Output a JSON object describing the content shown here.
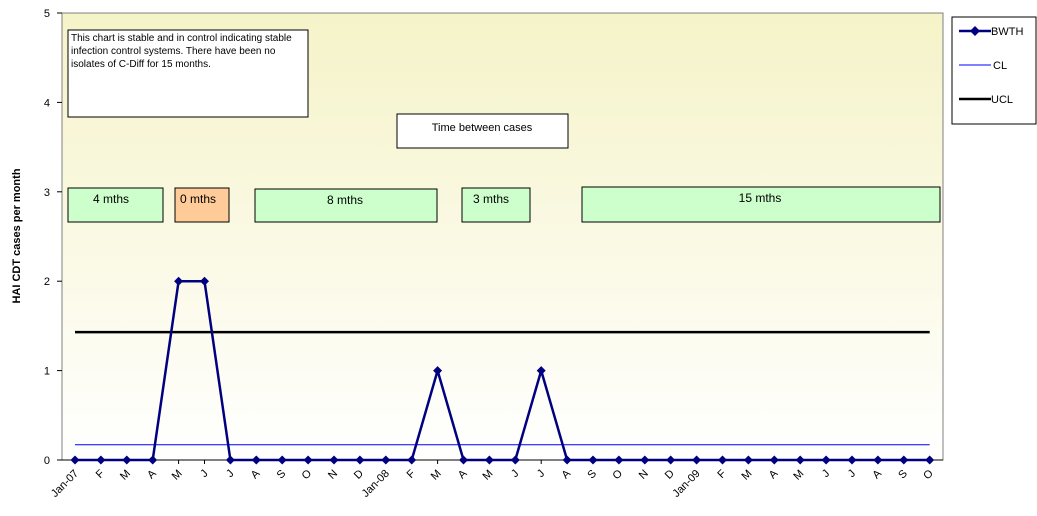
{
  "chart_data": {
    "type": "line",
    "title": "",
    "ylabel": "HAI CDT cases per month",
    "xlabel": "",
    "ylim": [
      0,
      5
    ],
    "yticks": [
      0,
      1,
      2,
      3,
      4,
      5
    ],
    "grid": false,
    "legend_position": "top-right",
    "categories": [
      "Jan-07",
      "F",
      "M",
      "A",
      "M",
      "J",
      "J",
      "A",
      "S",
      "O",
      "N",
      "D",
      "Jan-08",
      "F",
      "M",
      "A",
      "M",
      "J",
      "J",
      "A",
      "S",
      "O",
      "N",
      "D",
      "Jan-09",
      "F",
      "M",
      "A",
      "M",
      "J",
      "J",
      "A",
      "S",
      "O"
    ],
    "series": [
      {
        "name": "BWTH",
        "color": "#000080",
        "marker": "diamond",
        "values": [
          0,
          0,
          0,
          0,
          2,
          2,
          0,
          0,
          0,
          0,
          0,
          0,
          0,
          0,
          1,
          0,
          0,
          0,
          1,
          0,
          0,
          0,
          0,
          0,
          0,
          0,
          0,
          0,
          0,
          0,
          0,
          0,
          0,
          0
        ]
      },
      {
        "name": "CL",
        "color": "#0000ff",
        "value": 0.17
      },
      {
        "name": "UCL",
        "color": "#000000",
        "value": 1.43
      }
    ],
    "annotations": {
      "note": "This chart is stable and in control indicating stable infection control systems. There have been no isolates of C-Diff for 15 months.",
      "heading": "Time between cases",
      "intervals": [
        {
          "label": "4 mths",
          "color": "#ccffcc"
        },
        {
          "label": "0 mths",
          "color": "#ffcc99"
        },
        {
          "label": "8 mths",
          "color": "#ccffcc"
        },
        {
          "label": "3 mths",
          "color": "#ccffcc"
        },
        {
          "label": "15 mths",
          "color": "#ccffcc"
        }
      ]
    }
  }
}
